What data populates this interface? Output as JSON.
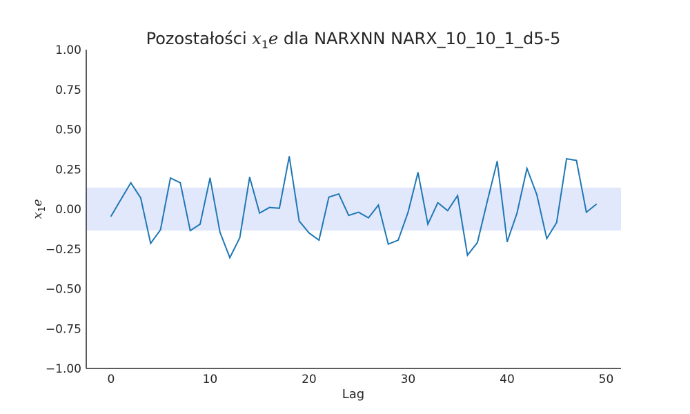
{
  "chart_data": {
    "type": "line",
    "title_prefix": "Pozostałości ",
    "title_math_base": "x",
    "title_math_sub": "1",
    "title_math_tail": "e",
    "title_suffix": " dla NARXNN NARX_10_10_1_d5-5",
    "xlabel": "Lag",
    "ylabel_base": "x",
    "ylabel_sub": "1",
    "ylabel_tail": "e",
    "xlim": [
      -2.5,
      51.5
    ],
    "ylim": [
      -1.0,
      1.0
    ],
    "xticks": [
      0,
      10,
      20,
      30,
      40,
      50
    ],
    "xtick_labels": [
      "0",
      "10",
      "20",
      "30",
      "40",
      "50"
    ],
    "yticks": [
      1.0,
      0.75,
      0.5,
      0.25,
      0.0,
      -0.25,
      -0.5,
      -0.75,
      -1.0
    ],
    "ytick_labels": [
      "1.00",
      "0.75",
      "0.50",
      "0.25",
      "0.00",
      "−0.25",
      "−0.50",
      "−0.75",
      "−1.00"
    ],
    "confidence_band": [
      -0.135,
      0.135
    ],
    "grid": false,
    "colors": {
      "line": "#1f77b4",
      "band": "#e2e8fc",
      "axis": "#262626"
    },
    "x": [
      0,
      1,
      2,
      3,
      4,
      5,
      6,
      7,
      8,
      9,
      10,
      11,
      12,
      13,
      14,
      15,
      16,
      17,
      18,
      19,
      20,
      21,
      22,
      23,
      24,
      25,
      26,
      27,
      28,
      29,
      30,
      31,
      32,
      33,
      34,
      35,
      36,
      37,
      38,
      39,
      40,
      41,
      42,
      43,
      44,
      45,
      46,
      47,
      48,
      49
    ],
    "values": [
      -0.045,
      0.06,
      0.165,
      0.07,
      -0.215,
      -0.13,
      0.195,
      0.165,
      -0.135,
      -0.095,
      0.195,
      -0.145,
      -0.305,
      -0.18,
      0.2,
      -0.025,
      0.01,
      0.005,
      0.33,
      -0.075,
      -0.15,
      -0.195,
      0.075,
      0.095,
      -0.04,
      -0.02,
      -0.055,
      0.025,
      -0.22,
      -0.195,
      -0.02,
      0.23,
      -0.095,
      0.04,
      -0.01,
      0.085,
      -0.29,
      -0.21,
      0.05,
      0.3,
      -0.205,
      -0.025,
      0.255,
      0.09,
      -0.185,
      -0.085,
      0.315,
      0.305,
      -0.02,
      0.03
    ]
  }
}
